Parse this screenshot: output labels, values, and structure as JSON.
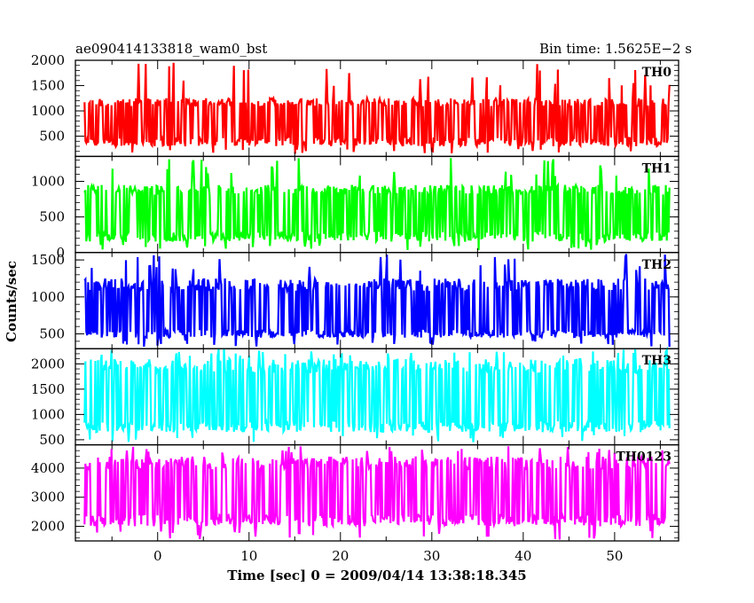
{
  "header": {
    "left": "ae090414133818_wam0_bst",
    "right": "Bin time: 1.5625E−2 s"
  },
  "chart_data": {
    "type": "line",
    "title": "ae090414133818_wam0_bst",
    "xlabel": "Time [sec] 0 = 2009/04/14 13:38:18.345",
    "ylabel": "Counts/sec",
    "xlim": [
      -9,
      57
    ],
    "x_ticks": [
      "0",
      "10",
      "20",
      "30",
      "40",
      "50"
    ],
    "x_range_data": [
      -8,
      56
    ],
    "panels": [
      {
        "name": "TH0",
        "color": "#ff0000",
        "ylim": [
          100,
          2000
        ],
        "y_ticks": [
          "500",
          "1000",
          "1500",
          "2000"
        ],
        "baseline": 800,
        "typical_low": 300,
        "typical_high": 1250,
        "min_dip": 150,
        "max_peak": 1980
      },
      {
        "name": "TH1",
        "color": "#00ff00",
        "ylim": [
          0,
          1350
        ],
        "y_ticks": [
          "0",
          "500",
          "1000"
        ],
        "baseline": 560,
        "typical_low": 150,
        "typical_high": 950,
        "min_dip": 30,
        "max_peak": 1330
      },
      {
        "name": "TH2",
        "color": "#0000ff",
        "ylim": [
          300,
          1600
        ],
        "y_ticks": [
          "500",
          "1000",
          "1500"
        ],
        "baseline": 760,
        "typical_low": 450,
        "typical_high": 1250,
        "min_dip": 320,
        "max_peak": 1590
      },
      {
        "name": "TH3",
        "color": "#00ffff",
        "ylim": [
          400,
          2300
        ],
        "y_ticks": [
          "500",
          "1000",
          "1500",
          "2000"
        ],
        "baseline": 1280,
        "typical_low": 650,
        "typical_high": 2100,
        "min_dip": 450,
        "max_peak": 2300
      },
      {
        "name": "TH0123",
        "color": "#ff00ff",
        "ylim": [
          1500,
          4800
        ],
        "y_ticks": [
          "2000",
          "3000",
          "4000"
        ],
        "baseline": 3150,
        "typical_low": 2000,
        "typical_high": 4400,
        "min_dip": 1550,
        "max_peak": 4750
      }
    ]
  }
}
